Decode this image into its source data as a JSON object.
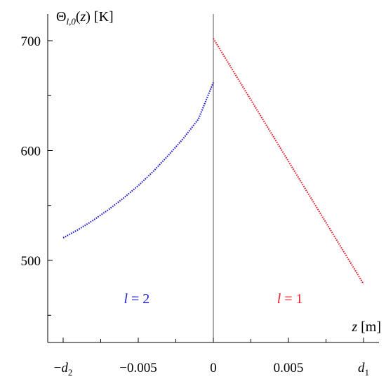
{
  "chart_data": {
    "type": "line",
    "title": "",
    "ylabel": {
      "symbol": "Θ",
      "subscript": "l,0",
      "argument": "(z)",
      "unit": "[K]"
    },
    "xlabel": {
      "symbol": "z",
      "unit": "[m]"
    },
    "xlim": [
      -0.01,
      0.01
    ],
    "ylim": [
      445,
      725
    ],
    "x_ticks": [
      {
        "value": -0.01,
        "label": "−d",
        "sub": "2"
      },
      {
        "value": -0.005,
        "label": "−0.005",
        "sub": ""
      },
      {
        "value": 0,
        "label": "0",
        "sub": ""
      },
      {
        "value": 0.005,
        "label": "0.005",
        "sub": ""
      },
      {
        "value": 0.01,
        "label": "d",
        "sub": "1"
      }
    ],
    "y_ticks": [
      {
        "value": 500,
        "label": "500"
      },
      {
        "value": 600,
        "label": "600"
      },
      {
        "value": 700,
        "label": "700"
      }
    ],
    "series": [
      {
        "name": "l = 2",
        "label_italic": "l",
        "label_rest": " = 2",
        "color": "#1f1fd0",
        "style": "dotted",
        "label_at": {
          "x": -0.0051,
          "y": 461
        },
        "points": [
          [
            -0.01,
            520.5
          ],
          [
            -0.009,
            528
          ],
          [
            -0.008,
            536.5
          ],
          [
            -0.007,
            546
          ],
          [
            -0.006,
            556.5
          ],
          [
            -0.005,
            568
          ],
          [
            -0.004,
            581
          ],
          [
            -0.003,
            595.5
          ],
          [
            -0.002,
            611
          ],
          [
            -0.001,
            628.5
          ],
          [
            0,
            662
          ]
        ]
      },
      {
        "name": "l = 1",
        "label_italic": "l",
        "label_rest": " = 1",
        "color": "#e8202a",
        "style": "dotted",
        "label_at": {
          "x": 0.0051,
          "y": 461
        },
        "points": [
          [
            0,
            702
          ],
          [
            0.01,
            478.5
          ]
        ]
      }
    ]
  }
}
